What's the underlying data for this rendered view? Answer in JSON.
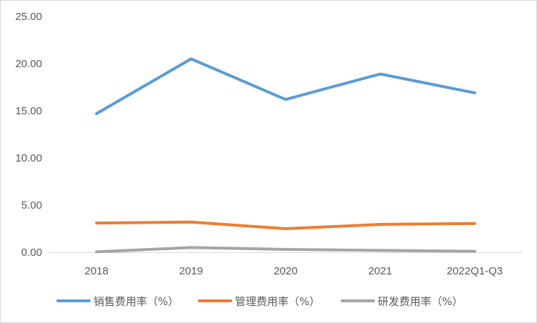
{
  "chart_data": {
    "type": "line",
    "categories": [
      "2018",
      "2019",
      "2020",
      "2021",
      "2022Q1-Q3"
    ],
    "series": [
      {
        "name": "销售费用率（%）",
        "values": [
          14.7,
          20.5,
          16.2,
          18.9,
          16.9
        ],
        "color": "#5b9bd5"
      },
      {
        "name": "管理费用率（%）",
        "values": [
          3.1,
          3.2,
          2.5,
          2.95,
          3.05
        ],
        "color": "#ed7d31"
      },
      {
        "name": "研发费用率（%）",
        "values": [
          0.05,
          0.5,
          0.3,
          0.2,
          0.1
        ],
        "color": "#a5a5a5"
      }
    ],
    "yticks": [
      "0.00",
      "5.00",
      "10.00",
      "15.00",
      "20.00",
      "25.00"
    ],
    "ylim": [
      0,
      25
    ],
    "grid": false,
    "legend": "bottom"
  }
}
